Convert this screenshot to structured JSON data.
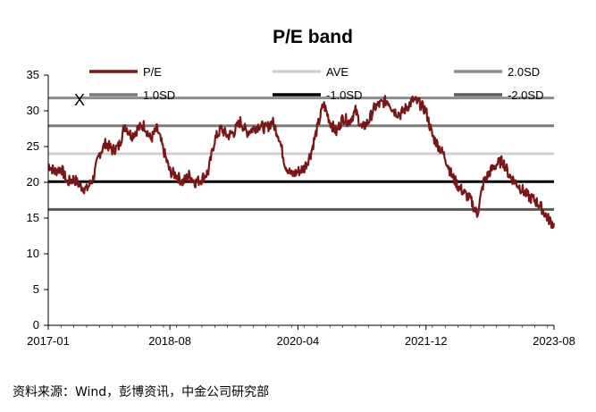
{
  "source_note": "资料来源：Wind，彭博资讯，中金公司研究部",
  "chart_data": {
    "type": "line",
    "title": "P/E band",
    "xlabel": "",
    "ylabel": "",
    "ylim": [
      0,
      35
    ],
    "yticks": [
      "0",
      "5",
      "10",
      "15",
      "20",
      "25",
      "30",
      "35"
    ],
    "xlim": [
      "2017-01",
      "2023-08"
    ],
    "xticks": [
      "2017-01",
      "2018-08",
      "2020-04",
      "2021-12",
      "2023-08"
    ],
    "grid": false,
    "legend_position": "top",
    "legend_order": [
      "P/E",
      "AVE",
      "2.0SD",
      "1.0SD",
      "-1.0SD",
      "-2.0SD"
    ],
    "annotation": "X",
    "colors": {
      "pe": "#7a1616",
      "ave": "#d0d0d0",
      "sd2": "#8c8c8c",
      "sd1": "#7a7a7a",
      "sdm1": "#000000",
      "sdm2": "#5a5a5a"
    },
    "bands": [
      {
        "name": "2.0SD",
        "value": 31.8
      },
      {
        "name": "1.0SD",
        "value": 27.9
      },
      {
        "name": "AVE",
        "value": 24.0
      },
      {
        "name": "-1.0SD",
        "value": 20.1
      },
      {
        "name": "-2.0SD",
        "value": 16.2
      }
    ],
    "series": [
      {
        "name": "P/E",
        "x": [
          "2017-01",
          "2017-02",
          "2017-03",
          "2017-04",
          "2017-05",
          "2017-06",
          "2017-07",
          "2017-08",
          "2017-09",
          "2017-10",
          "2017-11",
          "2017-12",
          "2018-01",
          "2018-02",
          "2018-03",
          "2018-04",
          "2018-05",
          "2018-06",
          "2018-07",
          "2018-08",
          "2018-09",
          "2018-10",
          "2018-11",
          "2018-12",
          "2019-01",
          "2019-02",
          "2019-03",
          "2019-04",
          "2019-05",
          "2019-06",
          "2019-07",
          "2019-08",
          "2019-09",
          "2019-10",
          "2019-11",
          "2019-12",
          "2020-01",
          "2020-02",
          "2020-03",
          "2020-04",
          "2020-05",
          "2020-06",
          "2020-07",
          "2020-08",
          "2020-09",
          "2020-10",
          "2020-11",
          "2020-12",
          "2021-01",
          "2021-02",
          "2021-03",
          "2021-04",
          "2021-05",
          "2021-06",
          "2021-07",
          "2021-08",
          "2021-09",
          "2021-10",
          "2021-11",
          "2021-12",
          "2022-01",
          "2022-02",
          "2022-03",
          "2022-04",
          "2022-05",
          "2022-06",
          "2022-07",
          "2022-08",
          "2022-09",
          "2022-10",
          "2022-11",
          "2022-12",
          "2023-01",
          "2023-02",
          "2023-03",
          "2023-04",
          "2023-05",
          "2023-06",
          "2023-07",
          "2023-08"
        ],
        "values": [
          22.5,
          21.5,
          22.0,
          20.0,
          20.5,
          19.5,
          19.0,
          20.5,
          24.0,
          25.5,
          24.5,
          25.0,
          28.0,
          26.5,
          27.5,
          28.0,
          26.0,
          27.5,
          24.5,
          21.5,
          21.0,
          20.0,
          21.0,
          20.0,
          20.5,
          21.5,
          26.0,
          27.5,
          26.5,
          27.0,
          28.5,
          27.0,
          27.5,
          28.0,
          27.5,
          28.5,
          26.5,
          22.5,
          21.0,
          21.5,
          22.0,
          24.0,
          27.5,
          31.0,
          28.5,
          27.0,
          29.0,
          28.5,
          30.0,
          27.5,
          28.5,
          30.5,
          31.0,
          31.5,
          30.0,
          29.5,
          30.5,
          31.5,
          31.0,
          30.0,
          26.5,
          25.0,
          23.5,
          21.0,
          19.5,
          18.5,
          17.5,
          15.5,
          20.0,
          21.5,
          22.5,
          23.0,
          21.0,
          20.0,
          19.0,
          18.0,
          17.5,
          16.5,
          15.0,
          14.0
        ]
      }
    ]
  }
}
